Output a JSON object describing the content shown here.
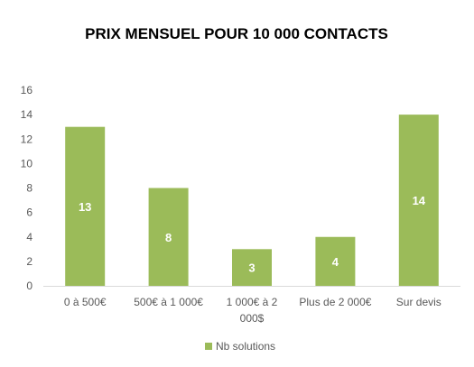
{
  "chart_data": {
    "type": "bar",
    "title": "PRIX MENSUEL POUR 10 000 CONTACTS",
    "categories": [
      [
        "0 à 500€"
      ],
      [
        "500€ à 1 000€"
      ],
      [
        "1 000€ à 2",
        "000$"
      ],
      [
        "Plus de 2 000€"
      ],
      [
        "Sur devis"
      ]
    ],
    "series": [
      {
        "name": "Nb solutions",
        "values": [
          13,
          8,
          3,
          4,
          14
        ],
        "color": "#9BBB59"
      }
    ],
    "ylim": [
      0,
      16
    ],
    "yticks": [
      "0",
      "2",
      "4",
      "6",
      "8",
      "10",
      "12",
      "14",
      "16"
    ],
    "data_labels": true,
    "grid": false,
    "legend_position": "bottom"
  }
}
